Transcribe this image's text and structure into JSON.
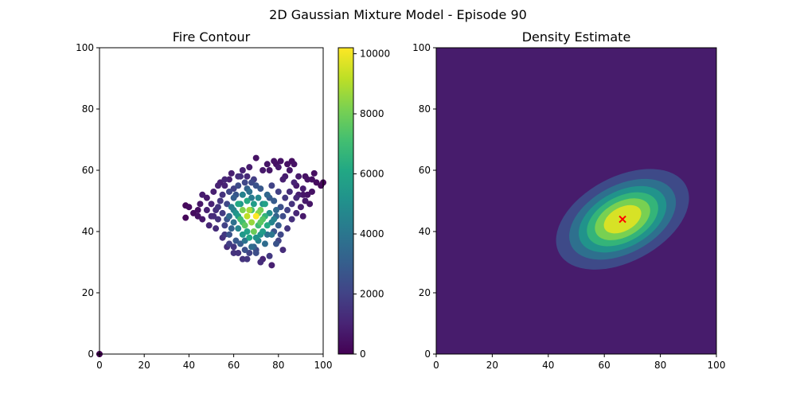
{
  "figure": {
    "suptitle": "2D Gaussian Mixture Model - Episode 90"
  },
  "chart_data": [
    {
      "type": "scatter",
      "title": "Fire Contour",
      "xlabel": "",
      "ylabel": "",
      "xlim": [
        0,
        100
      ],
      "ylim": [
        0,
        100
      ],
      "xticks": [
        0,
        20,
        40,
        60,
        80,
        100
      ],
      "yticks": [
        0,
        20,
        40,
        60,
        80,
        100
      ],
      "colormap": "viridis",
      "colorbar": {
        "range": [
          0,
          10200
        ],
        "ticks": [
          0,
          2000,
          4000,
          6000,
          8000,
          10000
        ]
      },
      "cluster_summary": {
        "x_range": [
          38,
          100
        ],
        "y_range": [
          29,
          64
        ],
        "center": [
          68,
          44
        ]
      },
      "points": [
        [
          0,
          0,
          0
        ],
        [
          38.5,
          48.5,
          200
        ],
        [
          38.5,
          44.5,
          150
        ],
        [
          40,
          48,
          300
        ],
        [
          42,
          46,
          350
        ],
        [
          44,
          45,
          500
        ],
        [
          44,
          47,
          400
        ],
        [
          45,
          49,
          600
        ],
        [
          46,
          44,
          700
        ],
        [
          46,
          52,
          800
        ],
        [
          48,
          47,
          900
        ],
        [
          48,
          51,
          700
        ],
        [
          49,
          42,
          1100
        ],
        [
          50,
          45,
          1200
        ],
        [
          50,
          49,
          1000
        ],
        [
          51,
          53,
          900
        ],
        [
          52,
          41,
          1300
        ],
        [
          52,
          47,
          1400
        ],
        [
          53,
          55,
          1000
        ],
        [
          53,
          44,
          1500
        ],
        [
          54,
          50,
          1600
        ],
        [
          55,
          38,
          1400
        ],
        [
          55,
          46,
          1800
        ],
        [
          56,
          57,
          1100
        ],
        [
          56,
          42,
          2000
        ],
        [
          57,
          49,
          2200
        ],
        [
          57,
          35,
          1300
        ],
        [
          58,
          53,
          2100
        ],
        [
          58,
          45,
          3500
        ],
        [
          58,
          39,
          2600
        ],
        [
          59,
          59,
          900
        ],
        [
          59,
          48,
          4200
        ],
        [
          60,
          33,
          1500
        ],
        [
          60,
          43,
          3800
        ],
        [
          60,
          51,
          3000
        ],
        [
          61,
          37,
          2800
        ],
        [
          61,
          46,
          5200
        ],
        [
          62,
          55,
          2300
        ],
        [
          62,
          41,
          4600
        ],
        [
          62,
          49,
          6100
        ],
        [
          63,
          58,
          1400
        ],
        [
          63,
          36,
          3000
        ],
        [
          63,
          44,
          7000
        ],
        [
          64,
          47,
          8200
        ],
        [
          64,
          52,
          4500
        ],
        [
          64,
          39,
          5400
        ],
        [
          65,
          34,
          2500
        ],
        [
          65,
          42,
          7600
        ],
        [
          65,
          56,
          2200
        ],
        [
          66,
          45,
          9200
        ],
        [
          66,
          50,
          6200
        ],
        [
          66,
          31,
          1600
        ],
        [
          67,
          38,
          6000
        ],
        [
          67,
          53,
          3800
        ],
        [
          67,
          61,
          800
        ],
        [
          68,
          43,
          8600
        ],
        [
          68,
          47,
          7200
        ],
        [
          68,
          35,
          3600
        ],
        [
          69,
          49,
          5600
        ],
        [
          69,
          40,
          7900
        ],
        [
          69,
          57,
          1800
        ],
        [
          70,
          45,
          10200
        ],
        [
          70,
          64,
          500
        ],
        [
          70,
          33,
          2400
        ],
        [
          71,
          51,
          4800
        ],
        [
          71,
          42,
          6900
        ],
        [
          71,
          37,
          4400
        ],
        [
          72,
          47,
          8000
        ],
        [
          72,
          54,
          2800
        ],
        [
          72,
          30,
          1300
        ],
        [
          73,
          44,
          7400
        ],
        [
          73,
          40,
          5600
        ],
        [
          73,
          60,
          700
        ],
        [
          74,
          49,
          5800
        ],
        [
          74,
          36,
          3600
        ],
        [
          75,
          42,
          6200
        ],
        [
          75,
          52,
          3400
        ],
        [
          75,
          62,
          600
        ],
        [
          76,
          46,
          5000
        ],
        [
          76,
          32,
          1700
        ],
        [
          77,
          29,
          900
        ],
        [
          77,
          39,
          4000
        ],
        [
          77,
          55,
          2000
        ],
        [
          78,
          44,
          4400
        ],
        [
          78,
          50,
          2900
        ],
        [
          78,
          63,
          500
        ],
        [
          79,
          36,
          2600
        ],
        [
          79,
          47,
          3400
        ],
        [
          80,
          42,
          3000
        ],
        [
          80,
          53,
          1900
        ],
        [
          80,
          61,
          700
        ],
        [
          81,
          39,
          2200
        ],
        [
          81,
          48,
          2500
        ],
        [
          82,
          45,
          2300
        ],
        [
          82,
          34,
          1300
        ],
        [
          82,
          57,
          900
        ],
        [
          83,
          51,
          1700
        ],
        [
          84,
          41,
          1600
        ],
        [
          84,
          47,
          1900
        ],
        [
          85,
          53,
          1300
        ],
        [
          86,
          44,
          1400
        ],
        [
          86,
          49,
          1500
        ],
        [
          87,
          56,
          1000
        ],
        [
          88,
          46,
          1100
        ],
        [
          88,
          51,
          1200
        ],
        [
          89,
          58,
          700
        ],
        [
          90,
          48,
          900
        ],
        [
          91,
          54,
          800
        ],
        [
          92,
          50,
          700
        ],
        [
          93,
          57,
          500
        ],
        [
          94,
          49,
          600
        ],
        [
          95,
          53,
          500
        ],
        [
          96,
          59,
          400
        ],
        [
          97,
          56,
          300
        ],
        [
          99,
          55,
          200
        ],
        [
          100,
          56,
          150
        ],
        [
          60,
          54,
          1900
        ],
        [
          62,
          45,
          5600
        ],
        [
          64,
          43,
          7000
        ],
        [
          66,
          40,
          5800
        ],
        [
          68,
          51,
          4200
        ],
        [
          70,
          38,
          5200
        ],
        [
          72,
          43,
          7600
        ],
        [
          74,
          45,
          6600
        ],
        [
          63,
          49,
          5300
        ],
        [
          67,
          47,
          8800
        ],
        [
          59,
          41,
          3200
        ],
        [
          57,
          44,
          2600
        ],
        [
          61,
          52,
          2700
        ],
        [
          65,
          37,
          3900
        ],
        [
          69,
          35,
          3100
        ],
        [
          71,
          46,
          8300
        ],
        [
          73,
          49,
          5100
        ],
        [
          75,
          39,
          3800
        ],
        [
          77,
          43,
          4600
        ],
        [
          79,
          45,
          3300
        ],
        [
          55,
          52,
          1500
        ],
        [
          53,
          48,
          1600
        ],
        [
          51,
          45,
          1300
        ],
        [
          76,
          51,
          2900
        ],
        [
          78,
          40,
          2700
        ],
        [
          80,
          37,
          2000
        ],
        [
          62,
          58,
          1300
        ],
        [
          64,
          60,
          1000
        ],
        [
          58,
          36,
          1900
        ],
        [
          56,
          39,
          1700
        ],
        [
          83,
          58,
          800
        ],
        [
          85,
          60,
          600
        ],
        [
          87,
          62,
          500
        ],
        [
          89,
          52,
          900
        ],
        [
          91,
          45,
          700
        ],
        [
          66,
          54,
          3200
        ],
        [
          68,
          56,
          2300
        ],
        [
          70,
          55,
          2600
        ],
        [
          60,
          47,
          4400
        ],
        [
          72,
          39,
          5200
        ],
        [
          84,
          62,
          450
        ],
        [
          86,
          63,
          400
        ],
        [
          81,
          63,
          500
        ],
        [
          79,
          62,
          450
        ],
        [
          76,
          60,
          600
        ],
        [
          66,
          58,
          1200
        ],
        [
          58,
          57,
          900
        ],
        [
          56,
          55,
          1000
        ],
        [
          54,
          56,
          900
        ],
        [
          92,
          58,
          500
        ],
        [
          95,
          57,
          450
        ],
        [
          91,
          52,
          600
        ],
        [
          93,
          52,
          550
        ],
        [
          88,
          55,
          700
        ],
        [
          73,
          31,
          1000
        ],
        [
          70,
          34,
          2200
        ],
        [
          67,
          33,
          2000
        ],
        [
          64,
          31,
          1500
        ],
        [
          62,
          33,
          1500
        ],
        [
          60,
          35,
          1600
        ]
      ]
    },
    {
      "type": "heatmap",
      "title": "Density Estimate",
      "xlabel": "",
      "ylabel": "",
      "xlim": [
        0,
        100
      ],
      "ylim": [
        0,
        100
      ],
      "xticks": [
        0,
        20,
        40,
        60,
        80,
        100
      ],
      "yticks": [
        0,
        20,
        40,
        60,
        80,
        100
      ],
      "colormap": "viridis",
      "gaussian": {
        "mean": [
          66.5,
          44
        ],
        "sigma": [
          13,
          7
        ],
        "rotation_deg": 28
      },
      "marker": {
        "x": 66.5,
        "y": 44,
        "symbol": "x",
        "color": "#ff0000"
      },
      "contour_levels": 7
    }
  ]
}
